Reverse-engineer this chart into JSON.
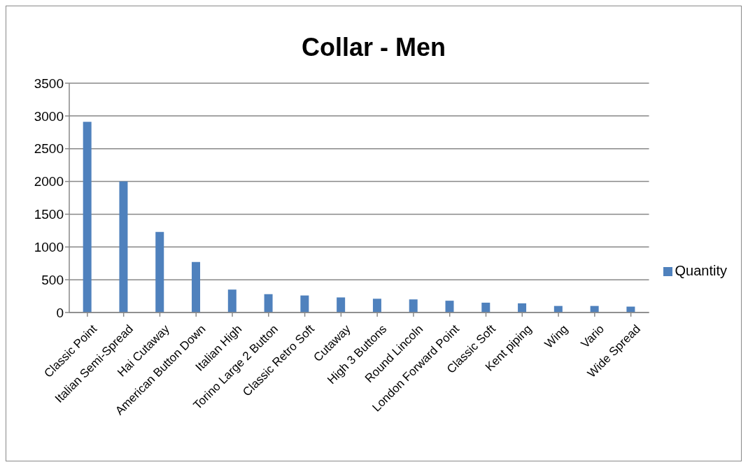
{
  "chart_data": {
    "type": "bar",
    "title": "Collar - Men",
    "categories": [
      "Classic Point",
      "Italian Semi-Spread",
      "Hai Cutaway",
      "American Button Down",
      "Italian High",
      "Torino Large 2 Button",
      "Classic Retro Soft",
      "Cutaway",
      "High 3 Buttons",
      "Round Lincoln",
      "London Forward Point",
      "Classic Soft",
      "Kent piping",
      "Wing",
      "Vario",
      "Wide Spread"
    ],
    "series": [
      {
        "name": "Quantity",
        "color": "#4f81bd",
        "values": [
          2910,
          2000,
          1230,
          770,
          350,
          280,
          260,
          230,
          210,
          200,
          180,
          150,
          140,
          100,
          100,
          90
        ]
      }
    ],
    "ylim": [
      0,
      3500
    ],
    "yticks": [
      0,
      500,
      1000,
      1500,
      2000,
      2500,
      3000,
      3500
    ],
    "grid": "y",
    "legend": "right"
  }
}
